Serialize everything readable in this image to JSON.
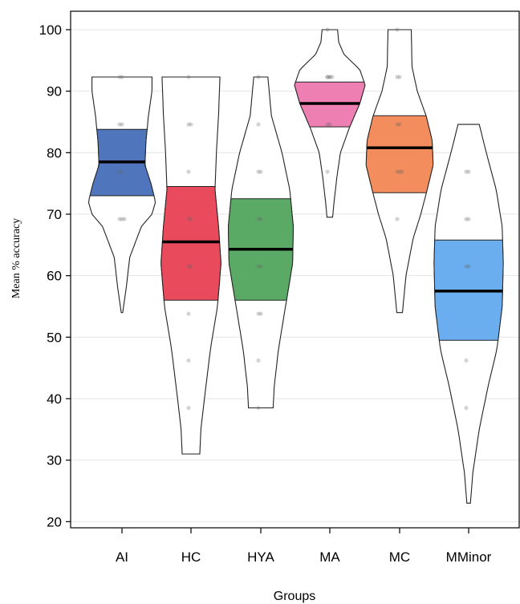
{
  "chart_data": {
    "type": "violin",
    "xlabel": "Groups",
    "ylabel": "Mean % accuracy",
    "ylim": [
      19,
      103
    ],
    "yticks": [
      20,
      30,
      40,
      50,
      60,
      70,
      80,
      90,
      100
    ],
    "grid": true,
    "categories": [
      "AI",
      "HC",
      "HYA",
      "MA",
      "MC",
      "MMinor"
    ],
    "series": [
      {
        "color": "#4f76bd",
        "min": 54,
        "max": 92.3,
        "mean": 78.5,
        "ci": [
          73,
          83.8
        ],
        "density": [
          [
            54,
            0.02
          ],
          [
            58,
            0.12
          ],
          [
            63,
            0.22
          ],
          [
            68,
            0.55
          ],
          [
            70,
            0.85
          ],
          [
            72,
            0.95
          ],
          [
            75,
            0.82
          ],
          [
            78,
            0.65
          ],
          [
            82,
            0.68
          ],
          [
            86,
            0.75
          ],
          [
            90,
            0.85
          ],
          [
            92.3,
            0.85
          ]
        ],
        "points": [
          69.2,
          69.2,
          69.2,
          76.9,
          76.9,
          84.6,
          84.6,
          92.3,
          92.3
        ]
      },
      {
        "color": "#e94b5d",
        "min": 31,
        "max": 92.3,
        "mean": 65.5,
        "ci": [
          56,
          74.5
        ],
        "density": [
          [
            31,
            0.25
          ],
          [
            35,
            0.28
          ],
          [
            40,
            0.38
          ],
          [
            48,
            0.55
          ],
          [
            55,
            0.75
          ],
          [
            62,
            0.85
          ],
          [
            68,
            0.78
          ],
          [
            74,
            0.68
          ],
          [
            80,
            0.72
          ],
          [
            86,
            0.78
          ],
          [
            92.3,
            0.82
          ]
        ],
        "points": [
          38.5,
          46.2,
          53.8,
          61.5,
          61.5,
          69.2,
          69.2,
          76.9,
          84.6,
          84.6,
          92.3
        ]
      },
      {
        "color": "#5aaa66",
        "min": 38.5,
        "max": 92.3,
        "mean": 64.3,
        "ci": [
          56,
          72.5
        ],
        "density": [
          [
            38.5,
            0.35
          ],
          [
            42,
            0.38
          ],
          [
            48,
            0.5
          ],
          [
            55,
            0.7
          ],
          [
            62,
            0.9
          ],
          [
            68,
            0.92
          ],
          [
            74,
            0.82
          ],
          [
            80,
            0.6
          ],
          [
            86,
            0.3
          ],
          [
            92.3,
            0.2
          ]
        ],
        "points": [
          38.5,
          46.2,
          53.8,
          53.8,
          61.5,
          61.5,
          69.2,
          69.2,
          76.9,
          76.9,
          84.6,
          92.3
        ]
      },
      {
        "color": "#ee7fb3",
        "min": 69.5,
        "max": 100,
        "mean": 88,
        "ci": [
          84.2,
          91.5
        ],
        "density": [
          [
            69.5,
            0.08
          ],
          [
            72,
            0.12
          ],
          [
            76,
            0.2
          ],
          [
            80,
            0.3
          ],
          [
            84,
            0.55
          ],
          [
            88,
            0.85
          ],
          [
            91,
            1.0
          ],
          [
            93.5,
            0.85
          ],
          [
            96,
            0.4
          ],
          [
            98,
            0.25
          ],
          [
            100,
            0.22
          ]
        ],
        "points": [
          76.9,
          84.6,
          84.6,
          92.3,
          92.3,
          92.3,
          92.3,
          92.3,
          100
        ]
      },
      {
        "color": "#f48d5d",
        "min": 54,
        "max": 100,
        "mean": 80.8,
        "ci": [
          73.5,
          86
        ],
        "density": [
          [
            54,
            0.08
          ],
          [
            60,
            0.18
          ],
          [
            66,
            0.38
          ],
          [
            70,
            0.6
          ],
          [
            74,
            0.78
          ],
          [
            78,
            0.95
          ],
          [
            82,
            0.92
          ],
          [
            86,
            0.75
          ],
          [
            90,
            0.5
          ],
          [
            94,
            0.35
          ],
          [
            100,
            0.33
          ]
        ],
        "points": [
          69.2,
          76.9,
          76.9,
          76.9,
          84.6,
          84.6,
          92.3,
          92.3,
          100
        ]
      },
      {
        "color": "#6aaeef",
        "min": 23,
        "max": 84.6,
        "mean": 57.5,
        "ci": [
          49.5,
          65.8
        ],
        "density": [
          [
            23,
            0.05
          ],
          [
            28,
            0.12
          ],
          [
            35,
            0.3
          ],
          [
            42,
            0.55
          ],
          [
            48,
            0.8
          ],
          [
            55,
            0.95
          ],
          [
            62,
            0.98
          ],
          [
            68,
            0.95
          ],
          [
            74,
            0.78
          ],
          [
            80,
            0.5
          ],
          [
            84.6,
            0.3
          ]
        ],
        "points": [
          38.5,
          46.2,
          61.5,
          61.5,
          69.2,
          69.2,
          76.9,
          76.9
        ]
      }
    ]
  }
}
